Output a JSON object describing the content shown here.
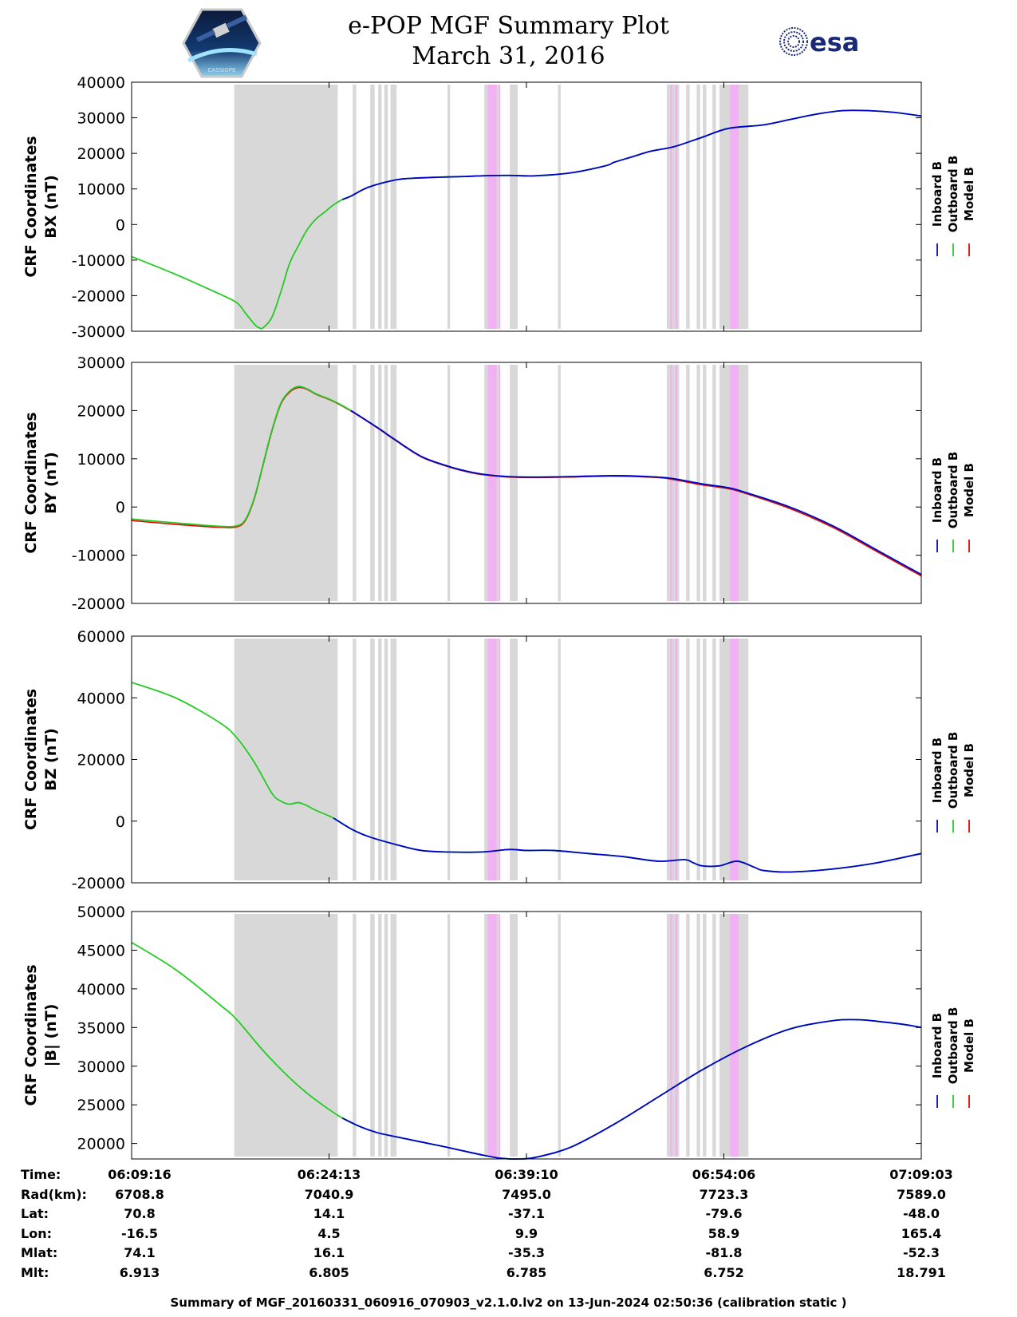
{
  "title": {
    "line1": "e-POP MGF Summary Plot",
    "line2": "March 31, 2016"
  },
  "logos": {
    "left": "cassiope-mission-logo",
    "left_text": "CASSIOPE",
    "right": "esa-logo",
    "right_text": "esa"
  },
  "colors": {
    "inboard": "#0000cc",
    "outboard": "#22cc22",
    "model": "#ee0000",
    "gray_band": "#d8d8d8",
    "pink_band": "#f4b0f4"
  },
  "chart_data": [
    {
      "type": "line",
      "ylabel_line1": "CRF Coordinates",
      "ylabel_line2": "BX (nT)",
      "ylim": [
        -30000,
        40000
      ],
      "yticks": [
        -30000,
        -20000,
        -10000,
        0,
        10000,
        20000,
        30000,
        40000
      ],
      "legend": [
        "Inboard B",
        "Outboard B",
        "Model B"
      ],
      "x_minutes": [
        0,
        5,
        10,
        12,
        13,
        14,
        14.5,
        15,
        16,
        17,
        18,
        19,
        20,
        21,
        22,
        23,
        24,
        25,
        27,
        30,
        32,
        35,
        38,
        40,
        43,
        46,
        50,
        54,
        55,
        57,
        59,
        60,
        62,
        65,
        68,
        72,
        75,
        78,
        81,
        84,
        87,
        90
      ],
      "y": [
        -9000,
        -14000,
        -19500,
        -22000,
        -25000,
        -28000,
        -29000,
        -29000,
        -26000,
        -19000,
        -11000,
        -6000,
        -1500,
        1500,
        3500,
        5500,
        7000,
        8000,
        10500,
        12500,
        13000,
        13300,
        13500,
        13700,
        13800,
        13700,
        14500,
        16500,
        17500,
        19000,
        20500,
        21000,
        22000,
        24500,
        27000,
        28000,
        29500,
        31000,
        32000,
        32000,
        31500,
        30500
      ],
      "split_minutes": 24.5
    },
    {
      "type": "line",
      "ylabel_line1": "CRF Coordinates",
      "ylabel_line2": "BY (nT)",
      "ylim": [
        -20000,
        30000
      ],
      "yticks": [
        -20000,
        -10000,
        0,
        10000,
        20000,
        30000
      ],
      "legend": [
        "Inboard B",
        "Outboard B",
        "Model B"
      ],
      "x_minutes": [
        0,
        5,
        10,
        12,
        13,
        14,
        15,
        16,
        17,
        18,
        19,
        20,
        21,
        23,
        25,
        28,
        30,
        33,
        36,
        38,
        40,
        43,
        46,
        50,
        55,
        60,
        62,
        65,
        68,
        70,
        75,
        80,
        85,
        90
      ],
      "y": [
        -2500,
        -3300,
        -4000,
        -3900,
        -2500,
        2000,
        9000,
        16000,
        21500,
        24000,
        25000,
        24500,
        23500,
        22000,
        20000,
        16500,
        14000,
        10500,
        8500,
        7500,
        6800,
        6300,
        6200,
        6300,
        6500,
        6200,
        5800,
        4800,
        4000,
        3000,
        0,
        -4000,
        -9000,
        -14000
      ],
      "y_model": [
        -2800,
        -3600,
        -4200,
        -4100,
        -2700,
        1800,
        8800,
        15800,
        21300,
        23800,
        24800,
        24400,
        23400,
        21900,
        19900,
        16400,
        13900,
        10400,
        8400,
        7400,
        6700,
        6200,
        6100,
        6200,
        6400,
        6100,
        5600,
        4600,
        3800,
        2800,
        -300,
        -4300,
        -9300,
        -14300
      ],
      "split_minutes": 26
    },
    {
      "type": "line",
      "ylabel_line1": "CRF Coordinates",
      "ylabel_line2": "BZ (nT)",
      "ylim": [
        -20000,
        60000
      ],
      "yticks": [
        -20000,
        0,
        20000,
        40000,
        60000
      ],
      "legend": [
        "Inboard B",
        "Outboard B",
        "Model B"
      ],
      "x_minutes": [
        0,
        5,
        10,
        12,
        14,
        16,
        17,
        18,
        19,
        20,
        21,
        23,
        25,
        27,
        30,
        33,
        36,
        40,
        43,
        45,
        48,
        52,
        56,
        60,
        63,
        64,
        65,
        67,
        69,
        71,
        72,
        75,
        80,
        85,
        90
      ],
      "y": [
        45000,
        40000,
        32000,
        27000,
        19000,
        9000,
        6500,
        5500,
        6000,
        5000,
        3500,
        1000,
        -2500,
        -5000,
        -7500,
        -9500,
        -10000,
        -10000,
        -9200,
        -9500,
        -9500,
        -10500,
        -11500,
        -13000,
        -12500,
        -13500,
        -14500,
        -14500,
        -13000,
        -15000,
        -16000,
        -16500,
        -15500,
        -13500,
        -10500
      ],
      "split_minutes": 25
    },
    {
      "type": "line",
      "ylabel_line1": "CRF Coordinates",
      "ylabel_line2": "|B| (nT)",
      "ylim": [
        18000,
        50000
      ],
      "yticks": [
        20000,
        25000,
        30000,
        35000,
        40000,
        45000,
        50000
      ],
      "legend": [
        "Inboard B",
        "Outboard B",
        "Model B"
      ],
      "x_minutes": [
        0,
        5,
        10,
        12,
        15,
        18,
        20,
        22,
        24,
        26,
        28,
        30,
        33,
        36,
        40,
        42,
        44,
        46,
        50,
        55,
        60,
        65,
        70,
        75,
        80,
        83,
        85,
        88,
        90
      ],
      "y": [
        46000,
        42500,
        38000,
        36000,
        32000,
        28500,
        26500,
        24800,
        23300,
        22200,
        21400,
        20900,
        20200,
        19500,
        18500,
        18100,
        18000,
        18200,
        19500,
        22500,
        26000,
        29500,
        32500,
        34800,
        35900,
        36000,
        35800,
        35400,
        35000
      ],
      "split_minutes": 25
    }
  ],
  "shaded_bands": {
    "gray": [
      [
        11.7,
        23.5
      ],
      [
        25.2,
        25.6
      ],
      [
        27.2,
        27.7
      ],
      [
        28.1,
        28.5
      ],
      [
        28.8,
        29.2
      ],
      [
        29.5,
        30.2
      ],
      [
        36.0,
        36.3
      ],
      [
        40.2,
        42.0
      ],
      [
        43.1,
        44.0
      ],
      [
        48.6,
        48.9
      ],
      [
        61.0,
        62.4
      ],
      [
        63.2,
        63.6
      ],
      [
        64.4,
        64.8
      ],
      [
        65.1,
        65.5
      ],
      [
        66.2,
        66.6
      ],
      [
        67.0,
        70.3
      ]
    ],
    "pink": [
      [
        40.6,
        41.6
      ],
      [
        41.9,
        42.0
      ],
      [
        61.4,
        61.6
      ],
      [
        62.0,
        62.2
      ],
      [
        68.2,
        69.2
      ]
    ]
  },
  "x_axis": {
    "range_minutes": [
      0,
      90
    ],
    "tick_minutes": [
      0,
      22.5,
      45,
      67.5,
      90
    ],
    "ticks": [
      "06:09:16",
      "06:24:13",
      "06:39:10",
      "06:54:06",
      "07:09:03"
    ]
  },
  "footer_table": {
    "rows": [
      {
        "label": "Time:",
        "values": [
          "06:09:16",
          "06:24:13",
          "06:39:10",
          "06:54:06",
          "07:09:03"
        ]
      },
      {
        "label": "Rad(km):",
        "values": [
          "6708.8",
          "7040.9",
          "7495.0",
          "7723.3",
          "7589.0"
        ]
      },
      {
        "label": "Lat:",
        "values": [
          "70.8",
          "14.1",
          "-37.1",
          "-79.6",
          "-48.0"
        ]
      },
      {
        "label": "Lon:",
        "values": [
          "-16.5",
          "4.5",
          "9.9",
          "58.9",
          "165.4"
        ]
      },
      {
        "label": "Mlat:",
        "values": [
          "74.1",
          "16.1",
          "-35.3",
          "-81.8",
          "-52.3"
        ]
      },
      {
        "label": "Mlt:",
        "values": [
          "6.913",
          "6.805",
          "6.785",
          "6.752",
          "18.791"
        ]
      }
    ]
  },
  "footer_summary": "Summary of MGF_20160331_060916_070903_v2.1.0.lv2 on 13-Jun-2024 02:50:36 (calibration static )"
}
